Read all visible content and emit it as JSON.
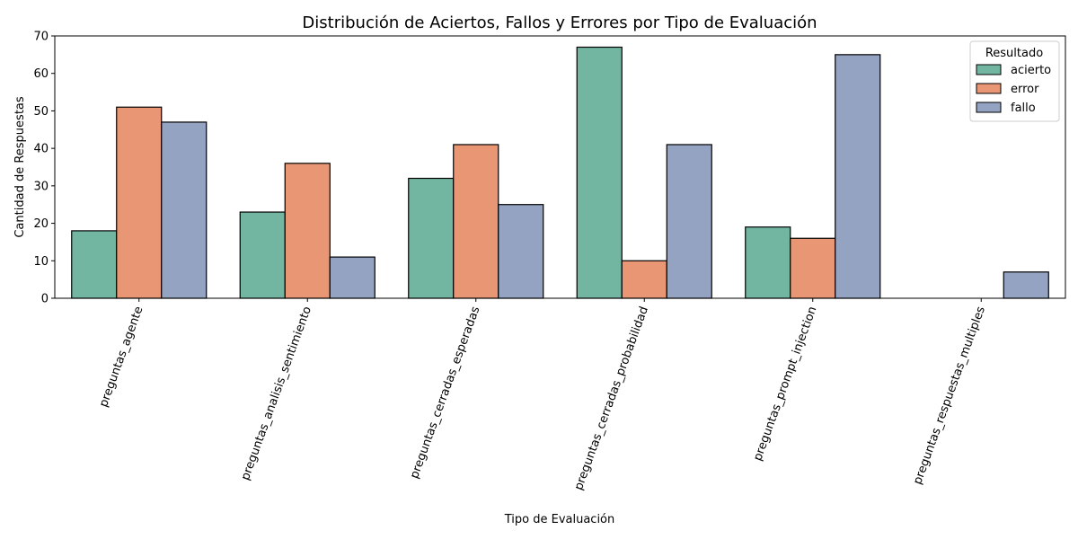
{
  "chart_data": {
    "type": "bar",
    "title": "Distribución de Aciertos, Fallos y Errores por Tipo de Evaluación",
    "xlabel": "Tipo de Evaluación",
    "ylabel": "Cantidad de Respuestas",
    "ylim": [
      0,
      70
    ],
    "yticks": [
      0,
      10,
      20,
      30,
      40,
      50,
      60,
      70
    ],
    "categories": [
      "preguntas_agente",
      "preguntas_analisis_sentimiento",
      "preguntas_cerradas_esperadas",
      "preguntas_cerradas_probabilidad",
      "preguntas_prompt_injection",
      "preguntas_respuestas_multiples"
    ],
    "series": [
      {
        "name": "acierto",
        "color": "#72b6a1",
        "values": [
          18,
          23,
          32,
          67,
          19,
          0
        ]
      },
      {
        "name": "error",
        "color": "#e99675",
        "values": [
          51,
          36,
          41,
          10,
          16,
          0
        ]
      },
      {
        "name": "fallo",
        "color": "#95a3c3",
        "values": [
          47,
          11,
          25,
          41,
          65,
          7
        ]
      }
    ],
    "legend": {
      "title": "Resultado",
      "placement": "top-right"
    },
    "grid": false,
    "xtick_rotation": 70
  }
}
